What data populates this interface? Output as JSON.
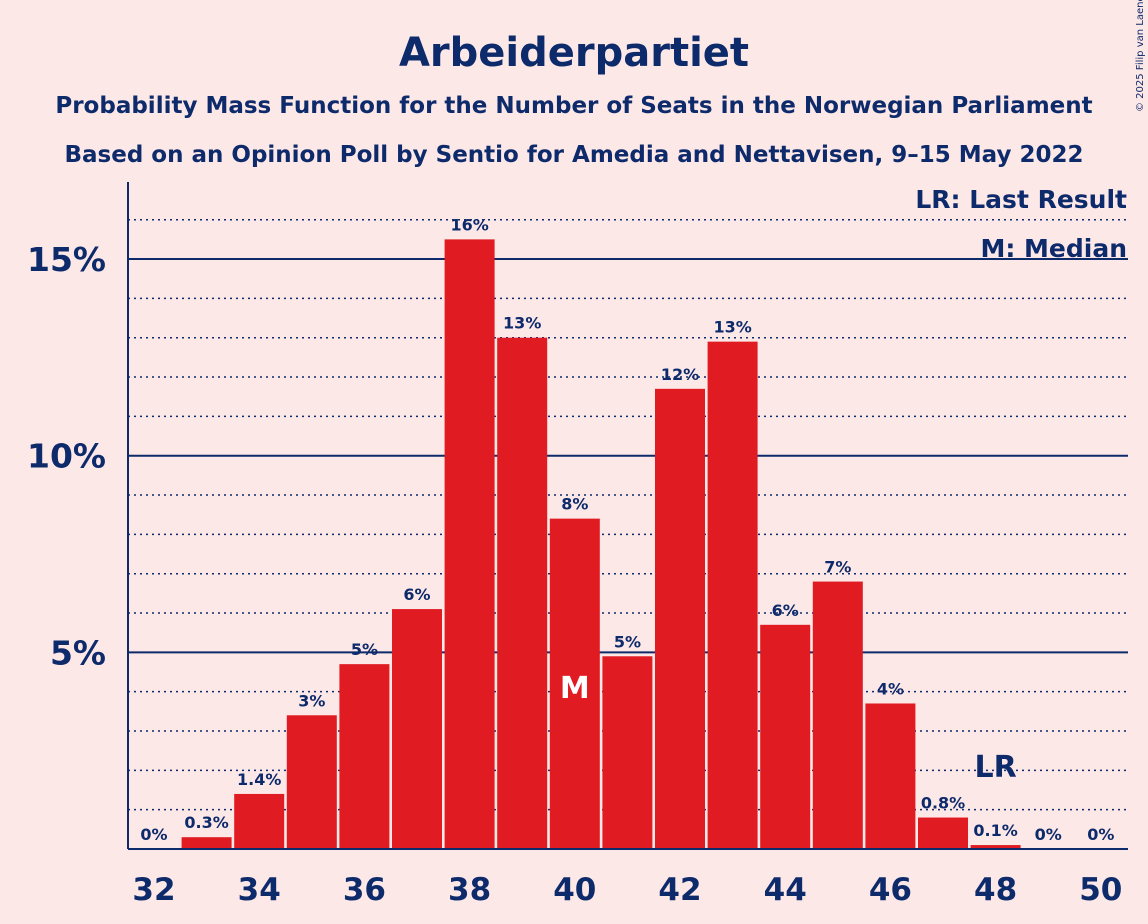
{
  "header": {
    "title": "Arbeiderpartiet",
    "subtitle_1": "Probability Mass Function for the Number of Seats in the Norwegian Parliament",
    "subtitle_2": "Based on an Opinion Poll by Sentio for Amedia and Nettavisen, 9–15 May 2022"
  },
  "copyright": "© 2025 Filip van Laenen",
  "legend": {
    "last_result": "LR: Last Result",
    "median": "M: Median"
  },
  "colors": {
    "bar": "#e01b22",
    "text": "#0d2a6b",
    "background": "#fde8e8"
  },
  "chart_data": {
    "type": "bar",
    "x": [
      32,
      33,
      34,
      35,
      36,
      37,
      38,
      39,
      40,
      41,
      42,
      43,
      44,
      45,
      46,
      47,
      48,
      49,
      50
    ],
    "values": [
      0,
      0.3,
      1.4,
      3.4,
      4.7,
      6.1,
      15.5,
      13.0,
      8.4,
      4.9,
      11.7,
      12.9,
      5.7,
      6.8,
      3.7,
      0.8,
      0.1,
      0,
      0
    ],
    "labels": [
      "0%",
      "0.3%",
      "1.4%",
      "3%",
      "5%",
      "6%",
      "16%",
      "13%",
      "8%",
      "5%",
      "12%",
      "13%",
      "6%",
      "7%",
      "4%",
      "0.8%",
      "0.1%",
      "0%",
      "0%"
    ],
    "x_ticks": [
      32,
      34,
      36,
      38,
      40,
      42,
      44,
      46,
      48,
      50
    ],
    "y_ticks": [
      5,
      10,
      15
    ],
    "y_tick_labels": [
      "5%",
      "10%",
      "15%"
    ],
    "ylim": [
      0,
      17
    ],
    "median": 40,
    "median_label": "M",
    "last_result": 48,
    "last_result_label": "LR",
    "grid": true,
    "legend_position": "top-right"
  }
}
